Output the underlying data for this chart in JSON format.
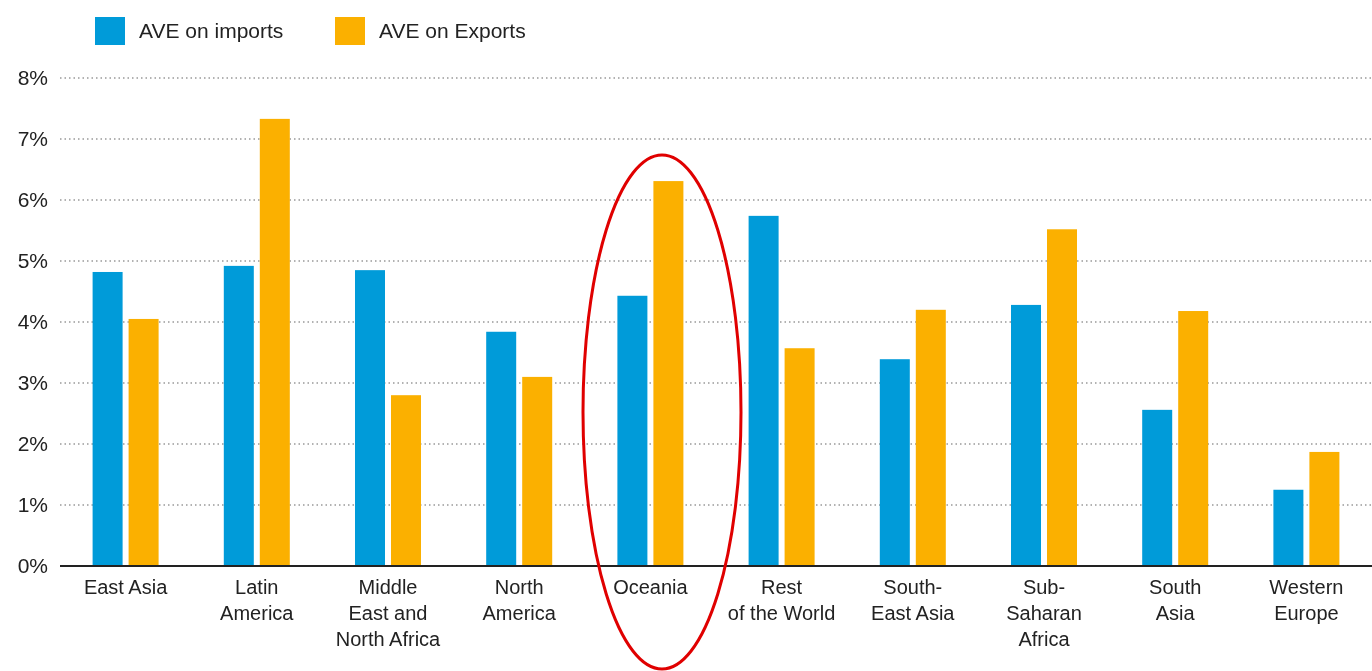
{
  "chart_data": {
    "type": "bar",
    "categories": [
      "East Asia",
      "Latin America",
      "Middle East and North Africa",
      "North America",
      "Oceania",
      "Rest of the World",
      "South-East Asia",
      "Sub-Saharan Africa",
      "South Asia",
      "Western Europe"
    ],
    "series": [
      {
        "name": "AVE on imports",
        "color": "#009bd9",
        "values": [
          4.82,
          4.92,
          4.85,
          3.84,
          4.43,
          5.74,
          3.39,
          4.28,
          2.56,
          1.25
        ]
      },
      {
        "name": "AVE on Exports",
        "color": "#fbb000",
        "values": [
          4.05,
          7.33,
          2.8,
          3.1,
          6.31,
          3.57,
          4.2,
          5.52,
          4.18,
          1.87
        ]
      }
    ],
    "ylim": [
      0,
      8
    ],
    "yticks": [
      {
        "value": 0,
        "label": "0%"
      },
      {
        "value": 1,
        "label": "1%"
      },
      {
        "value": 2,
        "label": "2%"
      },
      {
        "value": 3,
        "label": "3%"
      },
      {
        "value": 4,
        "label": "4%"
      },
      {
        "value": 5,
        "label": "5%"
      },
      {
        "value": 6,
        "label": "6%"
      },
      {
        "value": 7,
        "label": "7%"
      },
      {
        "value": 8,
        "label": "8%"
      }
    ],
    "grid": "y",
    "legend": "top left"
  }
}
